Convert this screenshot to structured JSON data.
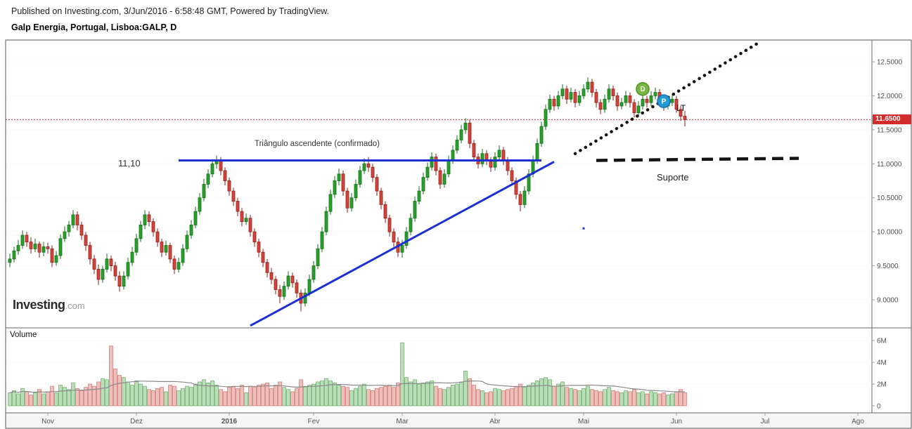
{
  "header": {
    "line1": "Published on Investing.com, 3/Jun/2016 - 6:58:48 GMT, Powered by TradingView.",
    "line2": "Galp Energia, Portugal, Lisboa:GALP, D"
  },
  "logo": {
    "main": "Investing",
    "suffix": ".com"
  },
  "chart_data": {
    "type": "candlestick",
    "title": "Galp Energia, Portugal, Lisboa:GALP, D",
    "symbol": "Lisboa:GALP",
    "interval": "D",
    "volume_label": "Volume",
    "last_price": 11.65,
    "last_price_label": "11.6500",
    "annotations": {
      "level": "11,10",
      "triangle": "Triângulo ascendente (confirmado)",
      "lt": "LT",
      "suporte": "Suporte"
    },
    "price_ticks": [
      {
        "p": 12.5,
        "label": "12.5000"
      },
      {
        "p": 12.0,
        "label": "12.0000"
      },
      {
        "p": 11.5,
        "label": "11.5000"
      },
      {
        "p": 11.0,
        "label": "11.0000"
      },
      {
        "p": 10.5,
        "label": "10.5000"
      },
      {
        "p": 10.0,
        "label": "10.0000"
      },
      {
        "p": 9.5,
        "label": "9.5000"
      },
      {
        "p": 9.0,
        "label": "9.0000"
      }
    ],
    "volume_ticks": [
      {
        "v": 6,
        "label": "6M"
      },
      {
        "v": 4,
        "label": "4M"
      },
      {
        "v": 2,
        "label": "2M"
      },
      {
        "v": 0,
        "label": "0"
      }
    ],
    "months": [
      {
        "label": "Nov",
        "i": 9
      },
      {
        "label": "Dez",
        "i": 30
      },
      {
        "label": "2016",
        "i": 52,
        "bold": true
      },
      {
        "label": "Fev",
        "i": 72
      },
      {
        "label": "Mar",
        "i": 93
      },
      {
        "label": "Abr",
        "i": 115
      },
      {
        "label": "Mai",
        "i": 136
      },
      {
        "label": "Jun",
        "i": 158
      },
      {
        "label": "Jul",
        "i": 179
      },
      {
        "label": "Ago",
        "i": 201
      }
    ],
    "colors": {
      "up": "#28a12c",
      "up_border": "#156e18",
      "down": "#d5443c",
      "down_border": "#8f1f16",
      "vol_up": "rgba(60,160,60,0.35)",
      "vol_up_border": "rgba(50,140,50,0.65)",
      "vol_down": "rgba(213,72,62,0.35)",
      "vol_down_border": "rgba(185,70,60,0.65)",
      "trend_blue": "#1c2fd4",
      "trend_black": "#141414",
      "last_price": "#d22c2c",
      "vol_ma": "#8a8a8a"
    },
    "lines": [
      {
        "name": "resistance-line",
        "from": {
          "i": 40,
          "p": 11.05
        },
        "to": {
          "i": 126,
          "p": 11.05
        },
        "color": "#1c2fd4",
        "width": 3
      },
      {
        "name": "ascending-trendline",
        "from": {
          "i": 57,
          "p": 8.62
        },
        "to": {
          "i": 129,
          "p": 11.03
        },
        "color": "#1c2fd4",
        "width": 3
      },
      {
        "name": "lt-dotted-trendline",
        "from": {
          "i": 134,
          "p": 11.15
        },
        "to": {
          "i": 178,
          "p": 12.8
        },
        "color": "#141414",
        "width": 4.5,
        "dash": "0.1 8.5",
        "cap": "round"
      },
      {
        "name": "suporte-dashed-line",
        "from": {
          "i": 139,
          "p": 11.05
        },
        "to": {
          "i": 187,
          "p": 11.08
        },
        "color": "#141414",
        "width": 4.5,
        "dash": "16 9"
      }
    ],
    "markers": [
      {
        "name": "marker-d",
        "type": "circle",
        "label": "D",
        "i": 150,
        "p": 12.1,
        "color": "#77b843",
        "border": "#4e8f2a"
      },
      {
        "name": "marker-p",
        "type": "circle",
        "label": "P",
        "i": 155,
        "p": 11.92,
        "color": "#2399d6",
        "border": "#1273a8"
      },
      {
        "name": "anchor-dot",
        "type": "dot",
        "i": 136,
        "p": 10.05,
        "color": "#2433c8"
      }
    ],
    "candles": [
      [
        9.55,
        9.68,
        9.48,
        9.6,
        1.2
      ],
      [
        9.6,
        9.78,
        9.55,
        9.72,
        1.4
      ],
      [
        9.72,
        9.88,
        9.66,
        9.8,
        1.1
      ],
      [
        9.8,
        10.02,
        9.75,
        9.95,
        1.6
      ],
      [
        9.95,
        10.0,
        9.78,
        9.85,
        1.3
      ],
      [
        9.85,
        9.92,
        9.68,
        9.75,
        1.0
      ],
      [
        9.75,
        9.9,
        9.7,
        9.82,
        1.2
      ],
      [
        9.82,
        9.86,
        9.62,
        9.7,
        1.5
      ],
      [
        9.7,
        9.85,
        9.64,
        9.78,
        1.1
      ],
      [
        9.78,
        9.84,
        9.68,
        9.75,
        1.3
      ],
      [
        9.75,
        9.8,
        9.48,
        9.55,
        1.8
      ],
      [
        9.55,
        9.72,
        9.5,
        9.65,
        1.2
      ],
      [
        9.65,
        9.96,
        9.6,
        9.9,
        1.9
      ],
      [
        9.9,
        10.08,
        9.85,
        10.0,
        1.7
      ],
      [
        10.0,
        10.16,
        9.93,
        10.1,
        1.5
      ],
      [
        10.1,
        10.32,
        10.05,
        10.25,
        2.1
      ],
      [
        10.25,
        10.3,
        10.02,
        10.1,
        1.6
      ],
      [
        10.1,
        10.15,
        9.88,
        9.95,
        1.4
      ],
      [
        9.95,
        10.0,
        9.72,
        9.8,
        1.7
      ],
      [
        9.8,
        9.85,
        9.52,
        9.6,
        2.0
      ],
      [
        9.6,
        9.66,
        9.38,
        9.45,
        1.8
      ],
      [
        9.45,
        9.52,
        9.22,
        9.3,
        2.2
      ],
      [
        9.3,
        9.5,
        9.25,
        9.45,
        2.5
      ],
      [
        9.45,
        9.68,
        9.4,
        9.6,
        2.4
      ],
      [
        9.6,
        9.65,
        9.42,
        9.5,
        5.5
      ],
      [
        9.5,
        9.56,
        9.28,
        9.35,
        3.4
      ],
      [
        9.35,
        9.42,
        9.12,
        9.2,
        2.8
      ],
      [
        9.2,
        9.42,
        9.15,
        9.35,
        2.6
      ],
      [
        9.35,
        9.62,
        9.3,
        9.55,
        2.2
      ],
      [
        9.55,
        9.78,
        9.5,
        9.7,
        1.9
      ],
      [
        9.7,
        9.97,
        9.65,
        9.9,
        2.3
      ],
      [
        9.9,
        10.16,
        9.85,
        10.1,
        2.0
      ],
      [
        10.1,
        10.32,
        10.04,
        10.25,
        1.8
      ],
      [
        10.25,
        10.3,
        10.08,
        10.15,
        1.5
      ],
      [
        10.15,
        10.2,
        9.93,
        10.0,
        1.4
      ],
      [
        10.0,
        10.05,
        9.78,
        9.85,
        1.6
      ],
      [
        9.85,
        9.9,
        9.63,
        9.7,
        1.7
      ],
      [
        9.7,
        9.87,
        9.65,
        9.8,
        1.3
      ],
      [
        9.8,
        9.84,
        9.54,
        9.6,
        1.9
      ],
      [
        9.6,
        9.65,
        9.38,
        9.45,
        1.8
      ],
      [
        9.45,
        9.62,
        9.4,
        9.55,
        1.4
      ],
      [
        9.55,
        9.82,
        9.5,
        9.75,
        1.6
      ],
      [
        9.75,
        10.02,
        9.7,
        9.95,
        1.8
      ],
      [
        9.95,
        10.17,
        9.9,
        10.1,
        1.7
      ],
      [
        10.1,
        10.37,
        10.05,
        10.3,
        2.0
      ],
      [
        10.3,
        10.57,
        10.25,
        10.5,
        2.2
      ],
      [
        10.5,
        10.78,
        10.45,
        10.7,
        2.4
      ],
      [
        10.7,
        10.92,
        10.64,
        10.85,
        2.1
      ],
      [
        10.85,
        11.07,
        10.8,
        11.0,
        2.3
      ],
      [
        11.0,
        11.12,
        10.93,
        11.05,
        1.9
      ],
      [
        11.05,
        11.1,
        10.83,
        10.9,
        1.5
      ],
      [
        10.9,
        10.95,
        10.68,
        10.75,
        1.3
      ],
      [
        10.75,
        10.8,
        10.53,
        10.6,
        1.7
      ],
      [
        10.6,
        10.65,
        10.38,
        10.45,
        1.8
      ],
      [
        10.45,
        10.5,
        10.23,
        10.3,
        1.6
      ],
      [
        10.3,
        10.35,
        10.08,
        10.15,
        1.9
      ],
      [
        10.15,
        10.27,
        10.1,
        10.2,
        1.2
      ],
      [
        10.2,
        10.25,
        9.93,
        10.0,
        1.8
      ],
      [
        10.0,
        10.05,
        9.78,
        9.85,
        1.7
      ],
      [
        9.85,
        9.9,
        9.63,
        9.7,
        1.9
      ],
      [
        9.7,
        9.75,
        9.48,
        9.55,
        2.0
      ],
      [
        9.55,
        9.6,
        9.33,
        9.4,
        2.1
      ],
      [
        9.4,
        9.47,
        9.23,
        9.3,
        1.6
      ],
      [
        9.3,
        9.35,
        9.08,
        9.15,
        1.9
      ],
      [
        9.15,
        9.22,
        8.95,
        9.05,
        2.2
      ],
      [
        9.05,
        9.27,
        9.0,
        9.2,
        1.7
      ],
      [
        9.2,
        9.42,
        9.15,
        9.35,
        1.5
      ],
      [
        9.35,
        9.4,
        9.18,
        9.25,
        1.3
      ],
      [
        9.25,
        9.3,
        9.03,
        9.1,
        1.6
      ],
      [
        9.1,
        9.15,
        8.83,
        8.95,
        2.4
      ],
      [
        8.95,
        9.17,
        8.9,
        9.1,
        1.8
      ],
      [
        9.1,
        9.37,
        9.05,
        9.3,
        1.9
      ],
      [
        9.3,
        9.57,
        9.25,
        9.5,
        2.0
      ],
      [
        9.5,
        9.82,
        9.45,
        9.75,
        2.2
      ],
      [
        9.75,
        10.07,
        9.7,
        10.0,
        2.3
      ],
      [
        10.0,
        10.37,
        9.95,
        10.3,
        2.5
      ],
      [
        10.3,
        10.62,
        10.25,
        10.55,
        2.3
      ],
      [
        10.55,
        10.82,
        10.5,
        10.75,
        2.1
      ],
      [
        10.75,
        10.93,
        10.68,
        10.85,
        1.9
      ],
      [
        10.85,
        10.9,
        10.53,
        10.6,
        1.8
      ],
      [
        10.6,
        10.65,
        10.28,
        10.35,
        1.7
      ],
      [
        10.35,
        10.57,
        10.3,
        10.5,
        1.4
      ],
      [
        10.5,
        10.77,
        10.45,
        10.7,
        1.6
      ],
      [
        10.7,
        10.97,
        10.65,
        10.9,
        1.8
      ],
      [
        10.9,
        11.08,
        10.85,
        11.0,
        2.0
      ],
      [
        11.0,
        11.1,
        10.88,
        10.95,
        1.5
      ],
      [
        10.95,
        11.0,
        10.73,
        10.8,
        1.4
      ],
      [
        10.8,
        10.85,
        10.53,
        10.6,
        1.6
      ],
      [
        10.6,
        10.65,
        10.33,
        10.4,
        1.7
      ],
      [
        10.4,
        10.45,
        10.13,
        10.2,
        1.8
      ],
      [
        10.2,
        10.25,
        9.93,
        10.0,
        1.9
      ],
      [
        10.0,
        10.05,
        9.78,
        9.85,
        1.7
      ],
      [
        9.85,
        9.92,
        9.63,
        9.7,
        2.1
      ],
      [
        9.7,
        9.88,
        9.62,
        9.8,
        5.8
      ],
      [
        9.8,
        10.07,
        9.75,
        10.0,
        2.6
      ],
      [
        10.0,
        10.27,
        9.95,
        10.2,
        2.2
      ],
      [
        10.2,
        10.52,
        10.15,
        10.45,
        2.4
      ],
      [
        10.45,
        10.67,
        10.4,
        10.6,
        2.0
      ],
      [
        10.6,
        10.87,
        10.55,
        10.8,
        2.1
      ],
      [
        10.8,
        11.02,
        10.75,
        10.95,
        2.2
      ],
      [
        10.95,
        11.17,
        10.9,
        11.1,
        2.3
      ],
      [
        11.1,
        11.15,
        10.83,
        10.9,
        1.8
      ],
      [
        10.9,
        10.95,
        10.63,
        10.7,
        1.6
      ],
      [
        10.7,
        10.92,
        10.65,
        10.85,
        1.5
      ],
      [
        10.85,
        11.12,
        10.8,
        11.05,
        1.7
      ],
      [
        11.05,
        11.27,
        11.0,
        11.2,
        1.9
      ],
      [
        11.2,
        11.42,
        11.15,
        11.35,
        2.0
      ],
      [
        11.35,
        11.57,
        11.3,
        11.5,
        2.2
      ],
      [
        11.5,
        11.67,
        11.44,
        11.6,
        3.2
      ],
      [
        11.6,
        11.65,
        11.23,
        11.3,
        2.5
      ],
      [
        11.3,
        11.35,
        11.03,
        11.1,
        1.9
      ],
      [
        11.1,
        11.15,
        10.93,
        11.0,
        1.5
      ],
      [
        11.0,
        11.22,
        10.95,
        11.15,
        1.4
      ],
      [
        11.15,
        11.2,
        10.98,
        11.05,
        1.2
      ],
      [
        11.05,
        11.1,
        10.88,
        10.95,
        1.3
      ],
      [
        10.95,
        11.17,
        10.9,
        11.1,
        1.6
      ],
      [
        11.1,
        11.27,
        11.05,
        11.2,
        1.5
      ],
      [
        11.2,
        11.25,
        10.98,
        11.05,
        1.4
      ],
      [
        11.05,
        11.1,
        10.83,
        10.9,
        1.5
      ],
      [
        10.9,
        10.95,
        10.68,
        10.75,
        1.6
      ],
      [
        10.75,
        10.8,
        10.48,
        10.55,
        1.8
      ],
      [
        10.55,
        10.6,
        10.3,
        10.4,
        2.0
      ],
      [
        10.4,
        10.67,
        10.35,
        10.6,
        1.7
      ],
      [
        10.6,
        10.92,
        10.55,
        10.85,
        1.9
      ],
      [
        10.85,
        11.12,
        10.8,
        11.05,
        2.1
      ],
      [
        11.05,
        11.37,
        11.0,
        11.3,
        2.3
      ],
      [
        11.3,
        11.62,
        11.25,
        11.55,
        2.5
      ],
      [
        11.55,
        11.87,
        11.5,
        11.8,
        2.6
      ],
      [
        11.8,
        12.02,
        11.75,
        11.95,
        2.4
      ],
      [
        11.95,
        12.0,
        11.78,
        11.85,
        1.8
      ],
      [
        11.85,
        12.07,
        11.8,
        12.0,
        2.0
      ],
      [
        12.0,
        12.17,
        11.95,
        12.1,
        2.2
      ],
      [
        12.1,
        12.15,
        11.88,
        11.95,
        1.7
      ],
      [
        11.95,
        12.12,
        11.9,
        12.05,
        1.6
      ],
      [
        12.05,
        12.1,
        11.83,
        11.9,
        1.5
      ],
      [
        11.9,
        12.07,
        11.85,
        12.0,
        1.4
      ],
      [
        12.0,
        12.17,
        11.95,
        12.1,
        1.6
      ],
      [
        12.1,
        12.27,
        12.05,
        12.2,
        1.8
      ],
      [
        12.2,
        12.25,
        11.98,
        12.05,
        1.5
      ],
      [
        12.05,
        12.1,
        11.83,
        11.9,
        1.4
      ],
      [
        11.9,
        11.95,
        11.73,
        11.8,
        1.3
      ],
      [
        11.8,
        12.02,
        11.75,
        11.95,
        1.5
      ],
      [
        11.95,
        12.17,
        11.9,
        12.1,
        1.7
      ],
      [
        12.1,
        12.15,
        11.93,
        12.0,
        1.4
      ],
      [
        12.0,
        12.05,
        11.78,
        11.85,
        1.3
      ],
      [
        11.85,
        11.97,
        11.8,
        11.9,
        1.2
      ],
      [
        11.9,
        12.07,
        11.85,
        12.0,
        1.4
      ],
      [
        12.0,
        12.05,
        11.83,
        11.9,
        1.3
      ],
      [
        11.9,
        11.95,
        11.68,
        11.75,
        1.5
      ],
      [
        11.75,
        11.92,
        11.7,
        11.85,
        1.2
      ],
      [
        11.85,
        12.02,
        11.8,
        11.95,
        1.3
      ],
      [
        11.95,
        12.0,
        11.83,
        11.9,
        1.1
      ],
      [
        11.9,
        12.07,
        11.85,
        12.0,
        1.3
      ],
      [
        12.0,
        12.12,
        11.95,
        12.05,
        1.2
      ],
      [
        12.05,
        12.1,
        11.88,
        11.95,
        1.1
      ],
      [
        11.95,
        12.0,
        11.78,
        11.85,
        1.2
      ],
      [
        11.85,
        11.97,
        11.8,
        11.9,
        1.0
      ],
      [
        11.9,
        12.02,
        11.85,
        11.95,
        1.1
      ],
      [
        11.95,
        12.0,
        11.75,
        11.8,
        1.3
      ],
      [
        11.8,
        11.85,
        11.63,
        11.7,
        1.5
      ],
      [
        11.7,
        11.78,
        11.55,
        11.65,
        1.2
      ]
    ]
  }
}
